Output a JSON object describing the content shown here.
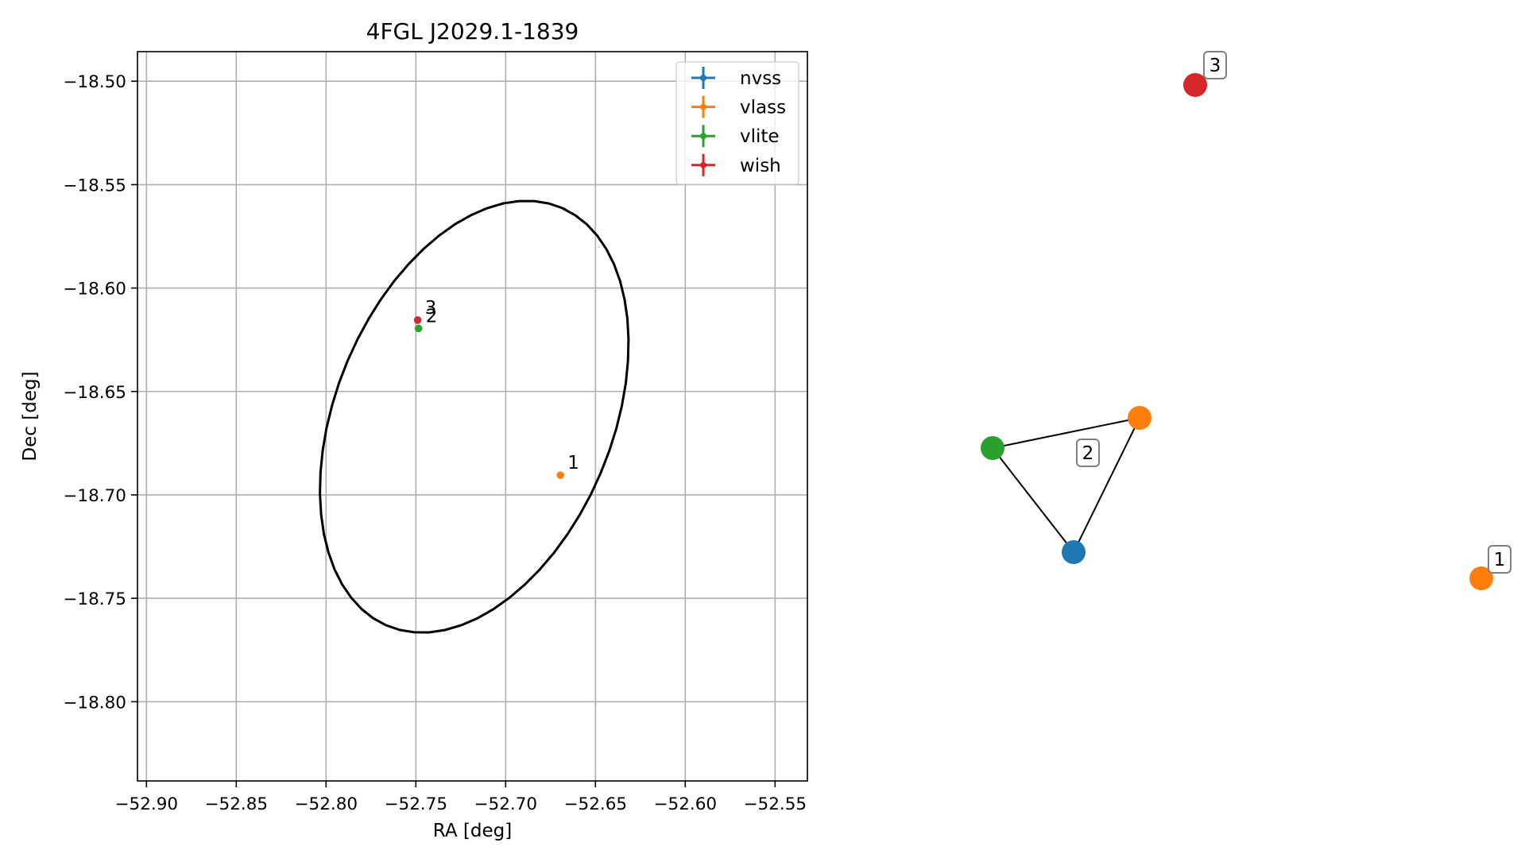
{
  "chart_data": [
    {
      "type": "scatter",
      "title": "4FGL J2029.1-1839",
      "xlabel": "RA [deg]",
      "ylabel": "Dec [deg]",
      "xlim": [
        -52.905,
        -52.532
      ],
      "ylim": [
        -18.8383,
        -18.4857
      ],
      "x_ticks": [
        -52.9,
        -52.85,
        -52.8,
        -52.75,
        -52.7,
        -52.65,
        -52.6,
        -52.55
      ],
      "x_tick_labels": [
        "−52.90",
        "−52.85",
        "−52.80",
        "−52.75",
        "−52.70",
        "−52.65",
        "−52.60",
        "−52.55"
      ],
      "y_ticks": [
        -18.5,
        -18.55,
        -18.6,
        -18.65,
        -18.7,
        -18.75,
        -18.8
      ],
      "y_tick_labels": [
        "−18.50",
        "−18.55",
        "−18.60",
        "−18.65",
        "−18.70",
        "−18.75",
        "−18.80"
      ],
      "grid": true,
      "legend_position": "top-right",
      "legend": [
        {
          "name": "nvss",
          "color": "#1f77b4"
        },
        {
          "name": "vlass",
          "color": "#ff7f0e"
        },
        {
          "name": "vlite",
          "color": "#2ca02c"
        },
        {
          "name": "wish",
          "color": "#d62728"
        }
      ],
      "ellipse": {
        "center_ra": -52.7175,
        "center_dec": -18.6622,
        "semi_major_deg": 0.1125,
        "semi_minor_deg": 0.075,
        "angle_deg": 60
      },
      "points": [
        {
          "series": "vlass",
          "ra": -52.6695,
          "dec": -18.6905,
          "label": "1",
          "color": "#ff7f0e"
        },
        {
          "series": "vlite",
          "ra": -52.7485,
          "dec": -18.6195,
          "label": "2",
          "color": "#2ca02c"
        },
        {
          "series": "wish",
          "ra": -52.749,
          "dec": -18.6155,
          "label": "3",
          "color": "#d62728"
        }
      ]
    },
    {
      "type": "network",
      "nodes": [
        {
          "id": "n3",
          "color": "#d62728",
          "tag": "3"
        },
        {
          "id": "n2a",
          "color": "#2ca02c"
        },
        {
          "id": "n2b",
          "color": "#ff7f0e"
        },
        {
          "id": "n2c",
          "color": "#1f77b4"
        },
        {
          "id": "n1",
          "color": "#ff7f0e",
          "tag": "1"
        }
      ],
      "edges": [
        [
          "n2a",
          "n2b"
        ],
        [
          "n2a",
          "n2c"
        ],
        [
          "n2b",
          "n2c"
        ]
      ],
      "group_labels": [
        "3",
        "2",
        "1"
      ]
    }
  ]
}
